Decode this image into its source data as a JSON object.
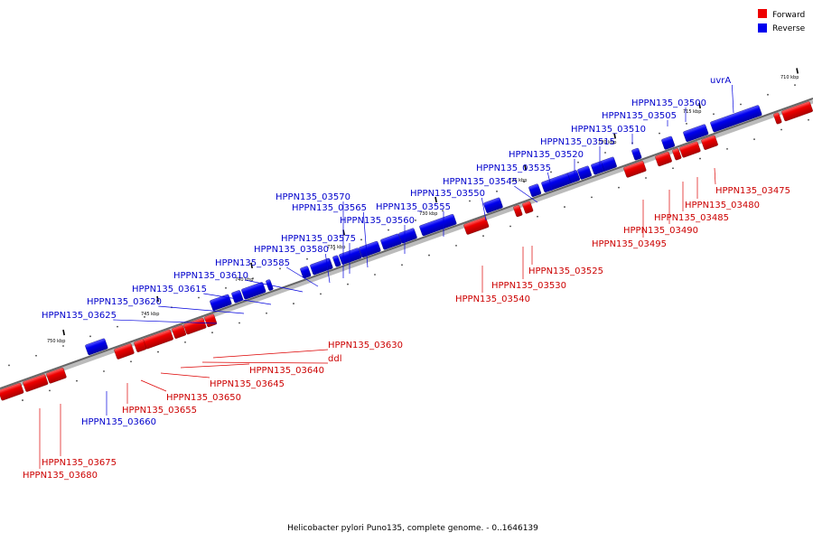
{
  "legend": [
    {
      "label": "Forward",
      "color": "#ee0000"
    },
    {
      "label": "Reverse",
      "color": "#0000ee"
    }
  ],
  "caption": "Helicobacter pylori Puno135, complete genome. - 0..1646139",
  "ticks": [
    "710 kbp",
    "715 kbp",
    "720 kbp",
    "725 kbp",
    "730 kbp",
    "735 kbp",
    "740 kbp",
    "745 kbp",
    "750 kbp"
  ],
  "genes": [
    {
      "label": "uvrA",
      "strand": "reverse"
    },
    {
      "label": "HPPN135_03500",
      "strand": "reverse"
    },
    {
      "label": "HPPN135_03505",
      "strand": "reverse"
    },
    {
      "label": "HPPN135_03510",
      "strand": "reverse"
    },
    {
      "label": "HPPN135_03515",
      "strand": "reverse"
    },
    {
      "label": "HPPN135_03520",
      "strand": "reverse"
    },
    {
      "label": "HPPN135_03535",
      "strand": "reverse"
    },
    {
      "label": "HPPN135_03545",
      "strand": "reverse"
    },
    {
      "label": "HPPN135_03550",
      "strand": "reverse"
    },
    {
      "label": "HPPN135_03555",
      "strand": "reverse"
    },
    {
      "label": "HPPN135_03560",
      "strand": "reverse"
    },
    {
      "label": "HPPN135_03565",
      "strand": "reverse"
    },
    {
      "label": "HPPN135_03570",
      "strand": "reverse"
    },
    {
      "label": "HPPN135_03575",
      "strand": "reverse"
    },
    {
      "label": "HPPN135_03580",
      "strand": "reverse"
    },
    {
      "label": "HPPN135_03585",
      "strand": "reverse"
    },
    {
      "label": "HPPN135_03610",
      "strand": "reverse"
    },
    {
      "label": "HPPN135_03615",
      "strand": "reverse"
    },
    {
      "label": "HPPN135_03620",
      "strand": "reverse"
    },
    {
      "label": "HPPN135_03625",
      "strand": "reverse"
    },
    {
      "label": "HPPN135_03660",
      "strand": "reverse"
    },
    {
      "label": "HPPN135_03475",
      "strand": "forward"
    },
    {
      "label": "HPPN135_03480",
      "strand": "forward"
    },
    {
      "label": "HPPN135_03485",
      "strand": "forward"
    },
    {
      "label": "HPPN135_03490",
      "strand": "forward"
    },
    {
      "label": "HPPN135_03495",
      "strand": "forward"
    },
    {
      "label": "HPPN135_03525",
      "strand": "forward"
    },
    {
      "label": "HPPN135_03530",
      "strand": "forward"
    },
    {
      "label": "HPPN135_03540",
      "strand": "forward"
    },
    {
      "label": "HPPN135_03630",
      "strand": "forward"
    },
    {
      "label": "ddl",
      "strand": "forward"
    },
    {
      "label": "HPPN135_03640",
      "strand": "forward"
    },
    {
      "label": "HPPN135_03645",
      "strand": "forward"
    },
    {
      "label": "HPPN135_03650",
      "strand": "forward"
    },
    {
      "label": "HPPN135_03655",
      "strand": "forward"
    },
    {
      "label": "HPPN135_03675",
      "strand": "forward"
    },
    {
      "label": "HPPN135_03680",
      "strand": "forward"
    }
  ]
}
